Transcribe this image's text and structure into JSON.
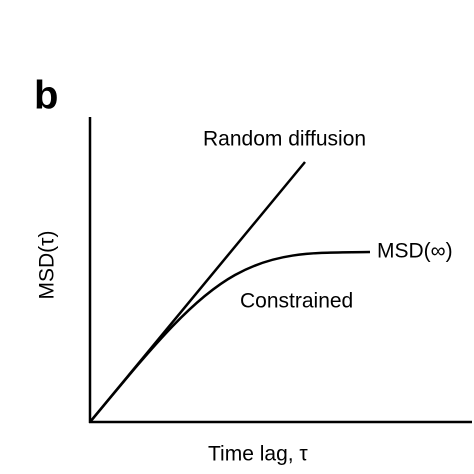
{
  "panel_label": "b",
  "curves": {
    "random": "Random diffusion",
    "plateau": "MSD(∞)",
    "constrained": "Constrained"
  },
  "axes": {
    "y_label": "MSD(τ)",
    "x_label": "Time lag, τ"
  }
}
